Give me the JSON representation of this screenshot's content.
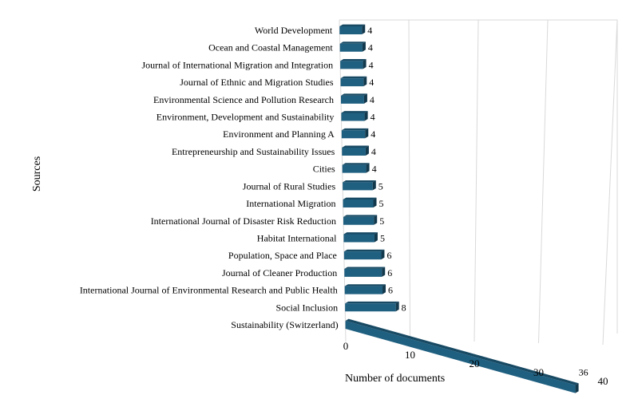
{
  "chart_data": {
    "type": "bar",
    "orientation": "horizontal",
    "style": "3d-perspective",
    "categories": [
      "World Development",
      "Ocean and Coastal Management",
      "Journal of International Migration and Integration",
      "Journal of Ethnic and Migration Studies",
      "Environmental Science and Pollution Research",
      "Environment, Development and Sustainability",
      "Environment and Planning A",
      "Entrepreneurship and Sustainability Issues",
      "Cities",
      "Journal of Rural Studies",
      "International Migration",
      "International Journal of Disaster Risk Reduction",
      "Habitat International",
      "Population, Space and Place",
      "Journal of Cleaner Production",
      "International Journal of Environmental Research and Public Health",
      "Social Inclusion",
      "Sustainability (Switzerland)"
    ],
    "values": [
      4,
      4,
      4,
      4,
      4,
      4,
      4,
      4,
      4,
      5,
      5,
      5,
      5,
      6,
      6,
      6,
      8,
      36
    ],
    "value_labels": [
      "4",
      "4",
      "4",
      "4",
      "4",
      "4",
      "4",
      "4",
      "4",
      "5",
      "5",
      "5",
      "5",
      "6",
      "6",
      "6",
      "8",
      "36"
    ],
    "xlabel": "Number of documents",
    "ylabel": "Sources",
    "xlim": [
      0,
      40
    ],
    "xticks": [
      "0",
      "10",
      "20",
      "30",
      "40"
    ],
    "grid": true,
    "bar_color": "#1f5f80"
  }
}
